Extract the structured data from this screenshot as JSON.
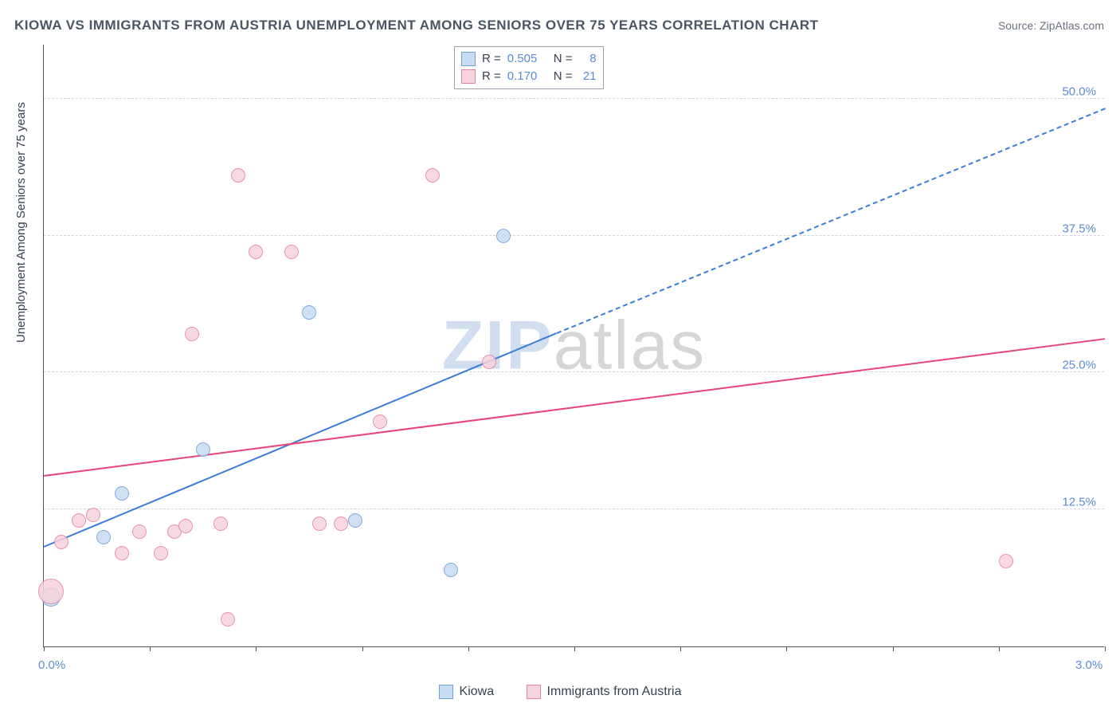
{
  "title": "KIOWA VS IMMIGRANTS FROM AUSTRIA UNEMPLOYMENT AMONG SENIORS OVER 75 YEARS CORRELATION CHART",
  "source": "Source: ZipAtlas.com",
  "watermark_a": "ZIP",
  "watermark_b": "atlas",
  "chart": {
    "type": "scatter",
    "background_color": "#ffffff",
    "axis_color": "#4b5563",
    "grid_color": "#d1d5db",
    "label_color": "#5b8bd4",
    "ylabel": "Unemployment Among Seniors over 75 years",
    "ylabel_fontsize": 15,
    "xlim": [
      0.0,
      3.0
    ],
    "xlabel_min": "0.0%",
    "xlabel_max": "3.0%",
    "xticks": [
      0.0,
      0.3,
      0.6,
      0.9,
      1.2,
      1.5,
      1.8,
      2.1,
      2.4,
      2.7,
      3.0
    ],
    "ylim": [
      0.0,
      55.0
    ],
    "yticks": [
      12.5,
      25.0,
      37.5,
      50.0
    ],
    "ytick_labels": [
      "12.5%",
      "25.0%",
      "37.5%",
      "50.0%"
    ],
    "series": [
      {
        "name": "Kiowa",
        "fill": "#c7dbf2",
        "stroke": "#6da0dd",
        "marker_radius": 9,
        "r_value": "0.505",
        "n_value": "8",
        "trend": {
          "x1": 0.0,
          "y1": 9.0,
          "x2": 1.45,
          "y2": 28.5,
          "x2_dash": 3.0,
          "y2_dash": 49.0,
          "color": "#3b7dd8"
        },
        "points": [
          {
            "x": 0.02,
            "y": 4.5,
            "r": 12
          },
          {
            "x": 0.17,
            "y": 10.0,
            "r": 9
          },
          {
            "x": 0.22,
            "y": 14.0,
            "r": 9
          },
          {
            "x": 0.45,
            "y": 18.0,
            "r": 9
          },
          {
            "x": 0.75,
            "y": 30.5,
            "r": 9
          },
          {
            "x": 0.88,
            "y": 11.5,
            "r": 9
          },
          {
            "x": 1.15,
            "y": 7.0,
            "r": 9
          },
          {
            "x": 1.3,
            "y": 37.5,
            "r": 9
          }
        ]
      },
      {
        "name": "Immigrants from Austria",
        "fill": "#f6d3dd",
        "stroke": "#e97fa5",
        "marker_radius": 9,
        "r_value": "0.170",
        "n_value": "21",
        "trend": {
          "x1": 0.0,
          "y1": 15.5,
          "x2": 3.0,
          "y2": 28.0,
          "color": "#e6447a"
        },
        "points": [
          {
            "x": 0.02,
            "y": 5.0,
            "r": 16
          },
          {
            "x": 0.05,
            "y": 9.5,
            "r": 9
          },
          {
            "x": 0.1,
            "y": 11.5,
            "r": 9
          },
          {
            "x": 0.14,
            "y": 12.0,
            "r": 9
          },
          {
            "x": 0.22,
            "y": 8.5,
            "r": 9
          },
          {
            "x": 0.27,
            "y": 10.5,
            "r": 9
          },
          {
            "x": 0.33,
            "y": 8.5,
            "r": 9
          },
          {
            "x": 0.37,
            "y": 10.5,
            "r": 9
          },
          {
            "x": 0.4,
            "y": 11.0,
            "r": 9
          },
          {
            "x": 0.42,
            "y": 28.5,
            "r": 9
          },
          {
            "x": 0.5,
            "y": 11.2,
            "r": 9
          },
          {
            "x": 0.52,
            "y": 2.5,
            "r": 9
          },
          {
            "x": 0.55,
            "y": 43.0,
            "r": 9
          },
          {
            "x": 0.6,
            "y": 36.0,
            "r": 9
          },
          {
            "x": 0.7,
            "y": 36.0,
            "r": 9
          },
          {
            "x": 0.78,
            "y": 11.2,
            "r": 9
          },
          {
            "x": 0.84,
            "y": 11.2,
            "r": 9
          },
          {
            "x": 0.95,
            "y": 20.5,
            "r": 9
          },
          {
            "x": 1.1,
            "y": 43.0,
            "r": 9
          },
          {
            "x": 1.26,
            "y": 26.0,
            "r": 9
          },
          {
            "x": 2.72,
            "y": 7.8,
            "r": 9
          }
        ]
      }
    ]
  },
  "legend_bottom": {
    "items": [
      "Kiowa",
      "Immigrants from Austria"
    ]
  }
}
